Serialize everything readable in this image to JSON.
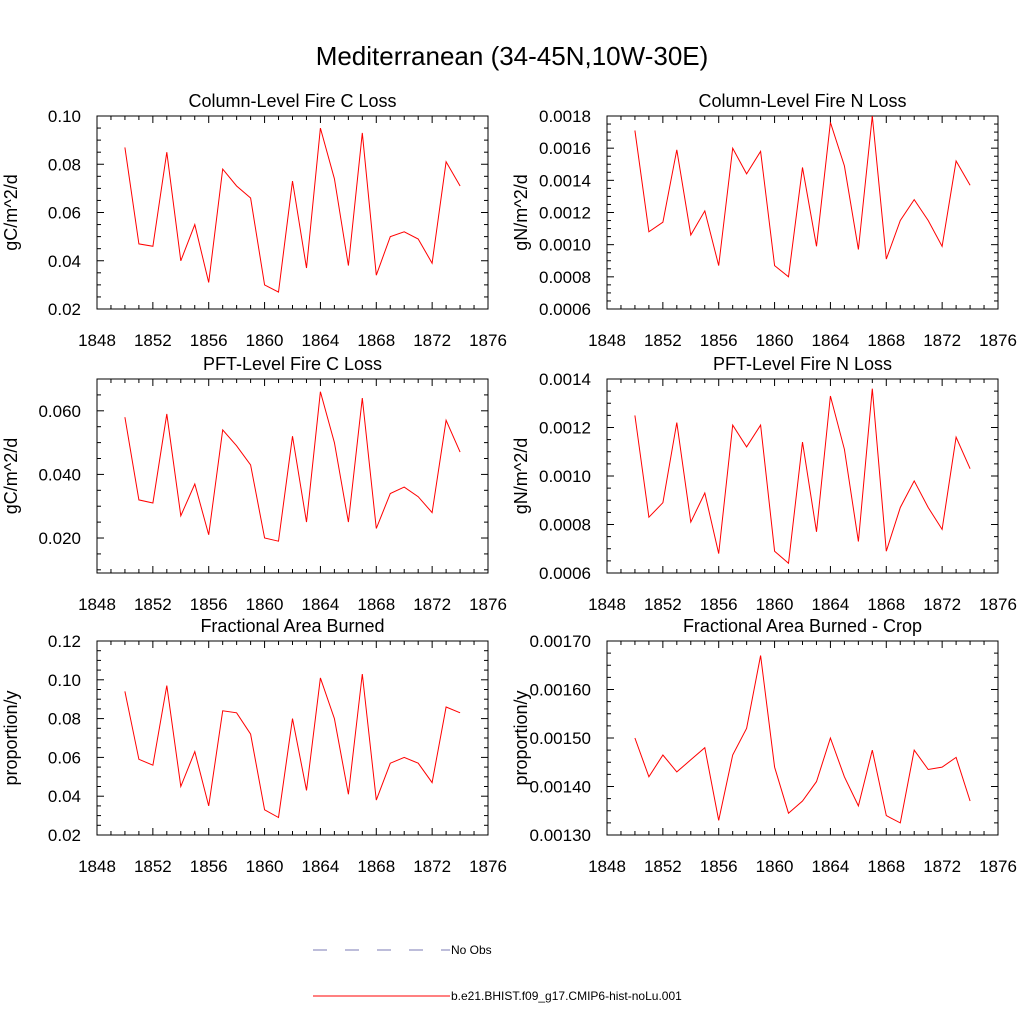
{
  "figure": {
    "title": "Mediterranean (34-45N,10W-30E)",
    "line_color": "#ff0000",
    "obs_color": "#7b7bb5",
    "legend": [
      {
        "label": "No Obs",
        "style": "dashed",
        "color": "#7b7bb5"
      },
      {
        "label": "b.e21.BHIST.f09_g17.CMIP6-hist-noLu.001",
        "style": "solid",
        "color": "#ff0000"
      }
    ]
  },
  "chart_data": [
    {
      "type": "line",
      "title": "Column-Level Fire C Loss",
      "ylabel": "gC/m^2/d",
      "xlim": [
        1848,
        1876
      ],
      "ylim": [
        0.02,
        0.1
      ],
      "xticks": [
        1848,
        1852,
        1856,
        1860,
        1864,
        1868,
        1872,
        1876
      ],
      "yticks": [
        "0.02",
        "0.04",
        "0.06",
        "0.08",
        "0.10"
      ],
      "x": [
        1850,
        1851,
        1852,
        1853,
        1854,
        1855,
        1856,
        1857,
        1858,
        1859,
        1860,
        1861,
        1862,
        1863,
        1864,
        1865,
        1866,
        1867,
        1868,
        1869,
        1870,
        1871,
        1872,
        1873,
        1874
      ],
      "values": [
        0.087,
        0.047,
        0.046,
        0.085,
        0.04,
        0.055,
        0.031,
        0.078,
        0.071,
        0.066,
        0.03,
        0.027,
        0.073,
        0.037,
        0.095,
        0.074,
        0.038,
        0.093,
        0.034,
        0.05,
        0.052,
        0.049,
        0.039,
        0.081,
        0.071
      ]
    },
    {
      "type": "line",
      "title": "Column-Level Fire N Loss",
      "ylabel": "gN/m^2/d",
      "xlim": [
        1848,
        1876
      ],
      "ylim": [
        0.0006,
        0.0018
      ],
      "xticks": [
        1848,
        1852,
        1856,
        1860,
        1864,
        1868,
        1872,
        1876
      ],
      "yticks": [
        "0.0006",
        "0.0008",
        "0.0010",
        "0.0012",
        "0.0014",
        "0.0016",
        "0.0018"
      ],
      "x": [
        1850,
        1851,
        1852,
        1853,
        1854,
        1855,
        1856,
        1857,
        1858,
        1859,
        1860,
        1861,
        1862,
        1863,
        1864,
        1865,
        1866,
        1867,
        1868,
        1869,
        1870,
        1871,
        1872,
        1873,
        1874
      ],
      "values": [
        0.00171,
        0.00108,
        0.00114,
        0.00159,
        0.00106,
        0.00121,
        0.00087,
        0.0016,
        0.00144,
        0.00158,
        0.00087,
        0.0008,
        0.00148,
        0.00099,
        0.00176,
        0.00149,
        0.00097,
        0.0018,
        0.00091,
        0.00115,
        0.00128,
        0.00115,
        0.00099,
        0.00152,
        0.00137
      ]
    },
    {
      "type": "line",
      "title": "PFT-Level Fire C Loss",
      "ylabel": "gC/m^2/d",
      "xlim": [
        1848,
        1876
      ],
      "ylim": [
        0.009,
        0.07
      ],
      "xticks": [
        1848,
        1852,
        1856,
        1860,
        1864,
        1868,
        1872,
        1876
      ],
      "yticks": [
        "0.020",
        "0.040",
        "0.060"
      ],
      "ytick_values": [
        0.02,
        0.04,
        0.06
      ],
      "x": [
        1850,
        1851,
        1852,
        1853,
        1854,
        1855,
        1856,
        1857,
        1858,
        1859,
        1860,
        1861,
        1862,
        1863,
        1864,
        1865,
        1866,
        1867,
        1868,
        1869,
        1870,
        1871,
        1872,
        1873,
        1874
      ],
      "values": [
        0.058,
        0.032,
        0.031,
        0.059,
        0.027,
        0.037,
        0.021,
        0.054,
        0.049,
        0.043,
        0.02,
        0.019,
        0.052,
        0.025,
        0.066,
        0.05,
        0.025,
        0.064,
        0.023,
        0.034,
        0.036,
        0.033,
        0.028,
        0.057,
        0.047
      ]
    },
    {
      "type": "line",
      "title": "PFT-Level Fire N Loss",
      "ylabel": "gN/m^2/d",
      "xlim": [
        1848,
        1876
      ],
      "ylim": [
        0.0006,
        0.0014
      ],
      "xticks": [
        1848,
        1852,
        1856,
        1860,
        1864,
        1868,
        1872,
        1876
      ],
      "yticks": [
        "0.0006",
        "0.0008",
        "0.0010",
        "0.0012",
        "0.0014"
      ],
      "x": [
        1850,
        1851,
        1852,
        1853,
        1854,
        1855,
        1856,
        1857,
        1858,
        1859,
        1860,
        1861,
        1862,
        1863,
        1864,
        1865,
        1866,
        1867,
        1868,
        1869,
        1870,
        1871,
        1872,
        1873,
        1874
      ],
      "values": [
        0.00125,
        0.00083,
        0.00089,
        0.00122,
        0.00081,
        0.00093,
        0.00068,
        0.00121,
        0.00112,
        0.00121,
        0.00069,
        0.00064,
        0.00114,
        0.00077,
        0.00133,
        0.00111,
        0.00073,
        0.00136,
        0.00069,
        0.00087,
        0.00098,
        0.00087,
        0.00078,
        0.00116,
        0.00103
      ]
    },
    {
      "type": "line",
      "title": "Fractional Area Burned",
      "ylabel": "proportion/y",
      "xlim": [
        1848,
        1876
      ],
      "ylim": [
        0.02,
        0.12
      ],
      "xticks": [
        1848,
        1852,
        1856,
        1860,
        1864,
        1868,
        1872,
        1876
      ],
      "yticks": [
        "0.02",
        "0.04",
        "0.06",
        "0.08",
        "0.10",
        "0.12"
      ],
      "x": [
        1850,
        1851,
        1852,
        1853,
        1854,
        1855,
        1856,
        1857,
        1858,
        1859,
        1860,
        1861,
        1862,
        1863,
        1864,
        1865,
        1866,
        1867,
        1868,
        1869,
        1870,
        1871,
        1872,
        1873,
        1874
      ],
      "values": [
        0.094,
        0.059,
        0.056,
        0.097,
        0.045,
        0.063,
        0.035,
        0.084,
        0.083,
        0.072,
        0.033,
        0.029,
        0.08,
        0.043,
        0.101,
        0.08,
        0.041,
        0.103,
        0.038,
        0.057,
        0.06,
        0.057,
        0.047,
        0.086,
        0.083
      ]
    },
    {
      "type": "line",
      "title": "Fractional Area Burned - Crop",
      "ylabel": "proportion/y",
      "xlim": [
        1848,
        1876
      ],
      "ylim": [
        0.0013,
        0.0017
      ],
      "xticks": [
        1848,
        1852,
        1856,
        1860,
        1864,
        1868,
        1872,
        1876
      ],
      "yticks": [
        "0.00130",
        "0.00140",
        "0.00150",
        "0.00160",
        "0.00170"
      ],
      "x": [
        1850,
        1851,
        1852,
        1853,
        1854,
        1855,
        1856,
        1857,
        1858,
        1859,
        1860,
        1861,
        1862,
        1863,
        1864,
        1865,
        1866,
        1867,
        1868,
        1869,
        1870,
        1871,
        1872,
        1873,
        1874
      ],
      "values": [
        0.0015,
        0.00142,
        0.001465,
        0.00143,
        0.001455,
        0.00148,
        0.00133,
        0.001465,
        0.00152,
        0.00167,
        0.00144,
        0.001345,
        0.00137,
        0.00141,
        0.0015,
        0.00142,
        0.00136,
        0.001475,
        0.00134,
        0.001325,
        0.001475,
        0.001435,
        0.00144,
        0.00146,
        0.00137
      ]
    }
  ]
}
